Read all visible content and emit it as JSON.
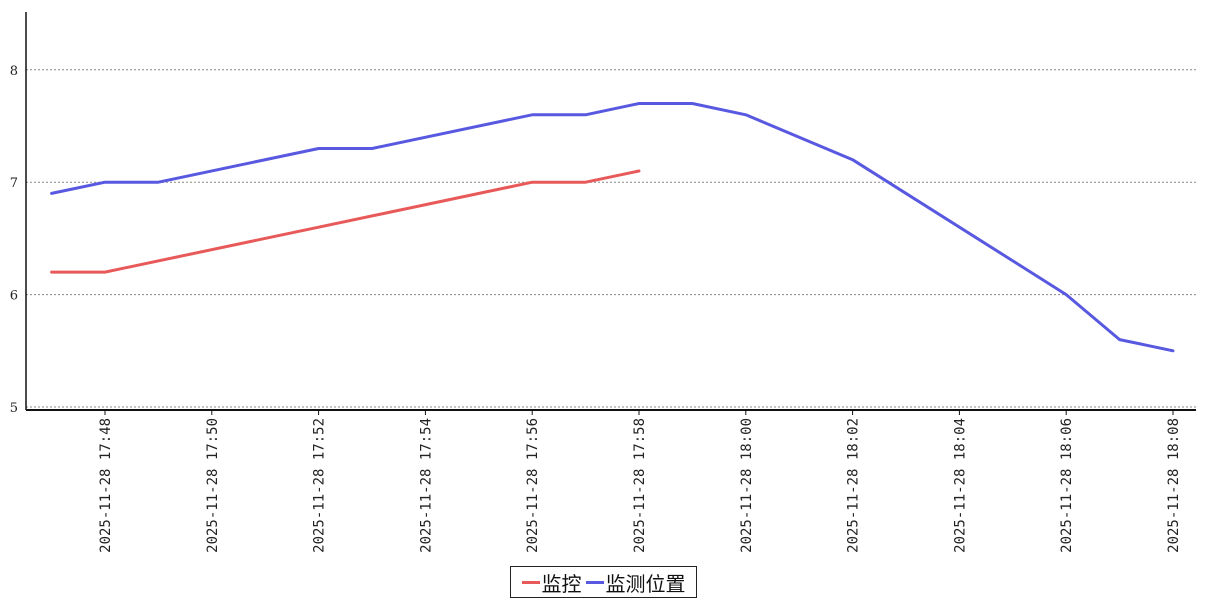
{
  "chart_data": {
    "type": "line",
    "title": "",
    "xlabel": "",
    "ylabel": "",
    "ylim": [
      5,
      8.5
    ],
    "yticks": [
      "5",
      "6",
      "7",
      "8"
    ],
    "xticks": [
      "2025-11-28 17:48",
      "2025-11-28 17:50",
      "2025-11-28 17:52",
      "2025-11-28 17:54",
      "2025-11-28 17:56",
      "2025-11-28 17:58",
      "2025-11-28 18:00",
      "2025-11-28 18:02",
      "2025-11-28 18:04",
      "2025-11-28 18:06",
      "2025-11-28 18:08"
    ],
    "grid": "horizontal dashed",
    "legend_position": "bottom-center",
    "series": [
      {
        "name": "监控",
        "color": "#e85a5a",
        "x": [
          "2025-11-28 17:47",
          "2025-11-28 17:48",
          "2025-11-28 17:52",
          "2025-11-28 17:56",
          "2025-11-28 17:57",
          "2025-11-28 17:58"
        ],
        "values": [
          6.2,
          6.2,
          6.6,
          7.0,
          7.0,
          7.1
        ]
      },
      {
        "name": "监测位置",
        "color": "#5858e0",
        "x": [
          "2025-11-28 17:47",
          "2025-11-28 17:48",
          "2025-11-28 17:49",
          "2025-11-28 17:52",
          "2025-11-28 17:53",
          "2025-11-28 17:56",
          "2025-11-28 17:57",
          "2025-11-28 17:58",
          "2025-11-28 17:59",
          "2025-11-28 18:00",
          "2025-11-28 18:02",
          "2025-11-28 18:06",
          "2025-11-28 18:07",
          "2025-11-28 18:08"
        ],
        "values": [
          6.9,
          7.0,
          7.0,
          7.3,
          7.3,
          7.6,
          7.6,
          7.7,
          7.7,
          7.6,
          7.2,
          6.0,
          5.6,
          5.5
        ]
      }
    ]
  },
  "legend": {
    "items": [
      "监控",
      "监测位置"
    ]
  }
}
